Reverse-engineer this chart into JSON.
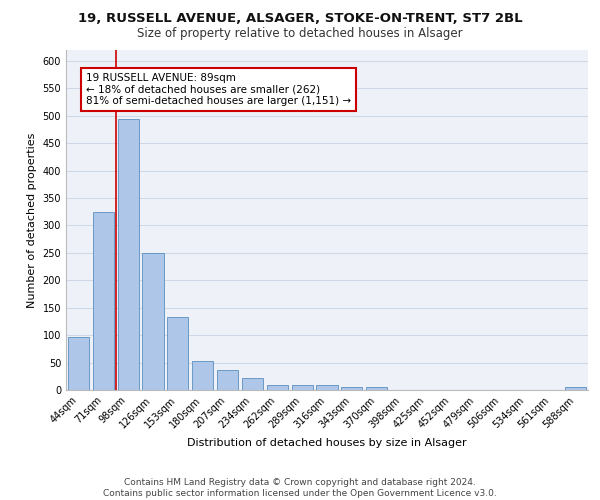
{
  "title1": "19, RUSSELL AVENUE, ALSAGER, STOKE-ON-TRENT, ST7 2BL",
  "title2": "Size of property relative to detached houses in Alsager",
  "xlabel": "Distribution of detached houses by size in Alsager",
  "ylabel": "Number of detached properties",
  "categories": [
    "44sqm",
    "71sqm",
    "98sqm",
    "126sqm",
    "153sqm",
    "180sqm",
    "207sqm",
    "234sqm",
    "262sqm",
    "289sqm",
    "316sqm",
    "343sqm",
    "370sqm",
    "398sqm",
    "425sqm",
    "452sqm",
    "479sqm",
    "506sqm",
    "534sqm",
    "561sqm",
    "588sqm"
  ],
  "values": [
    97,
    325,
    495,
    250,
    133,
    52,
    36,
    22,
    10,
    10,
    10,
    5,
    5,
    0,
    0,
    0,
    0,
    0,
    0,
    0,
    5
  ],
  "bar_color": "#aec6e8",
  "bar_edge_color": "#5a8fc0",
  "vline_color": "#cc0000",
  "annotation_text": "19 RUSSELL AVENUE: 89sqm\n← 18% of detached houses are smaller (262)\n81% of semi-detached houses are larger (1,151) →",
  "annotation_box_color": "#cc0000",
  "ylim": [
    0,
    620
  ],
  "yticks": [
    0,
    50,
    100,
    150,
    200,
    250,
    300,
    350,
    400,
    450,
    500,
    550,
    600
  ],
  "grid_color": "#d0d8e8",
  "bg_color": "#eef2f8",
  "footer": "Contains HM Land Registry data © Crown copyright and database right 2024.\nContains public sector information licensed under the Open Government Licence v3.0.",
  "title1_fontsize": 9.5,
  "title2_fontsize": 8.5,
  "xlabel_fontsize": 8,
  "ylabel_fontsize": 8,
  "tick_fontsize": 7,
  "annotation_fontsize": 7.5,
  "footer_fontsize": 6.5
}
